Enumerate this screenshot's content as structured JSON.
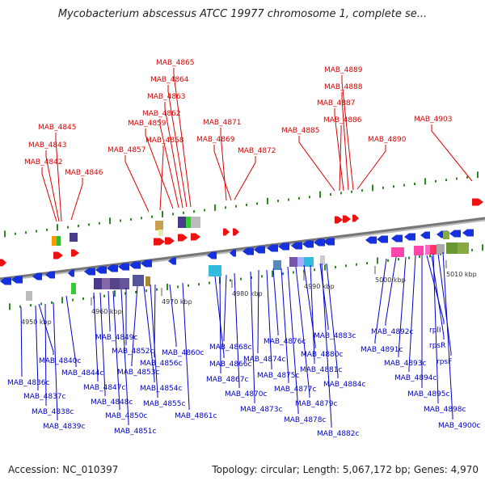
{
  "title": "Mycobacterium abscessus ATCC 19977 chromosome 1, complete se...",
  "footer": {
    "accession": "Accession: NC_010397",
    "summary": "Topology: circular; Length: 5,067,172 bp; Genes: 4,970"
  },
  "colors": {
    "forward_label": "#dd0000",
    "reverse_label": "#0000cc",
    "backbone": "#777777",
    "tick": "#2e8b22",
    "forward_gene": "#ee1111",
    "reverse_gene": "#1530dd"
  },
  "scale_labels": [
    "4950 kbp",
    "4960 kbp",
    "4970 kbp",
    "4980 kbp",
    "4990 kbp",
    "5000 kbp",
    "5010 kbp"
  ],
  "forward_genes": [
    "MAB_4842",
    "MAB_4843",
    "MAB_4845",
    "MAB_4846",
    "MAB_4857",
    "MAB_4858",
    "MAB_4859",
    "MAB_4862",
    "MAB_4863",
    "MAB_4864",
    "MAB_4865",
    "MAB_4869",
    "MAB_4871",
    "MAB_4872",
    "MAB_4885",
    "MAB_4886",
    "MAB_4887",
    "MAB_4888",
    "MAB_4889",
    "MAB_4890",
    "MAB_4903"
  ],
  "reverse_genes": [
    "MAB_4836c",
    "MAB_4837c",
    "MAB_4838c",
    "MAB_4839c",
    "MAB_4840c",
    "MAB_4844c",
    "MAB_4847c",
    "MAB_4848c",
    "MAB_4849c",
    "MAB_4850c",
    "MAB_4851c",
    "MAB_4852c",
    "MAB_4853c",
    "MAB_4854c",
    "MAB_4855c",
    "MAB_4856c",
    "MAB_4860c",
    "MAB_4861c",
    "MAB_4866c",
    "MAB_4867c",
    "MAB_4868c",
    "MAB_4870c",
    "MAB_4873c",
    "MAB_4874c",
    "MAB_4875c",
    "MAB_4876c",
    "MAB_4877c",
    "MAB_4878c",
    "MAB_4879c",
    "MAB_4880c",
    "MAB_4881c",
    "MAB_4882c",
    "MAB_4883c",
    "MAB_4884c",
    "MAB_4891c",
    "MAB_4892c",
    "MAB_4893c",
    "MAB_4894c",
    "MAB_4895c",
    "MAB_4898c",
    "MAB_4900c",
    "rplI",
    "rpsR",
    "rpsF"
  ]
}
